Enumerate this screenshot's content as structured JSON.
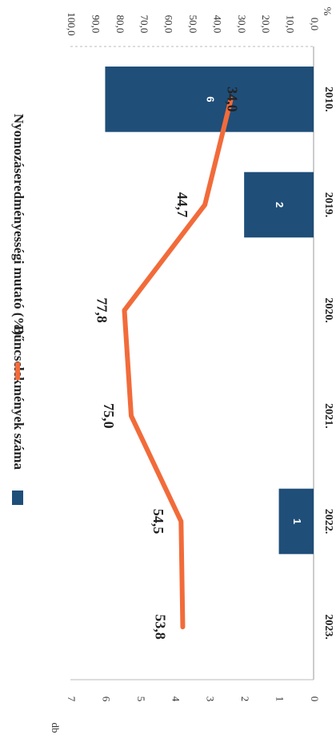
{
  "chart_data": {
    "type": "bar+line",
    "orientation": "rotated 90° clockwise",
    "categories": [
      "2010.",
      "2019.",
      "2020.",
      "2021.",
      "2022.",
      "2023."
    ],
    "series": [
      {
        "name": "Bűncselekmények száma",
        "type": "bar",
        "axis": "left",
        "values": [
          6,
          2,
          null,
          null,
          1,
          null
        ],
        "labels": [
          "6",
          "2",
          "",
          "",
          "1",
          ""
        ],
        "color": "#1f4e79"
      },
      {
        "name": "Nyomozáseredményességi mutató (%)",
        "type": "line",
        "axis": "right",
        "values": [
          34.0,
          44.7,
          77.8,
          75.0,
          54.5,
          53.8
        ],
        "labels": [
          "34,0",
          "44,7",
          "77,8",
          "75,0",
          "54,5",
          "53,8"
        ],
        "color": "#f26b3a"
      }
    ],
    "left_axis": {
      "label": "db",
      "ticks": [
        "0",
        "1",
        "2",
        "3",
        "4",
        "5",
        "6",
        "7"
      ],
      "range": [
        0,
        7
      ]
    },
    "right_axis": {
      "label": "%",
      "ticks": [
        "0,0",
        "10,0",
        "20,0",
        "30,0",
        "40,0",
        "50,0",
        "60,0",
        "70,0",
        "80,0",
        "90,0",
        "100,0"
      ],
      "range": [
        0,
        100
      ]
    },
    "grid": false,
    "legend_position": "top"
  }
}
